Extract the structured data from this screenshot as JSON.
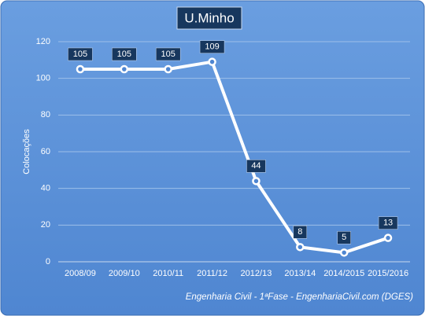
{
  "chart_data": {
    "type": "line",
    "title": "U.Minho",
    "y_label": "Colocações",
    "footer": "Engenharia Civil - 1ªFase - EngenhariaCivil.com (DGES)",
    "categories": [
      "2008/09",
      "2009/10",
      "2010/11",
      "2011/12",
      "2012/13",
      "2013/14",
      "2014/2015",
      "2015/2016"
    ],
    "values": [
      105,
      105,
      105,
      109,
      44,
      8,
      5,
      13
    ],
    "color": "#ffffff",
    "ylim": [
      0,
      120
    ],
    "yticks": [
      0,
      20,
      40,
      60,
      80,
      100,
      120
    ],
    "grid": true
  }
}
